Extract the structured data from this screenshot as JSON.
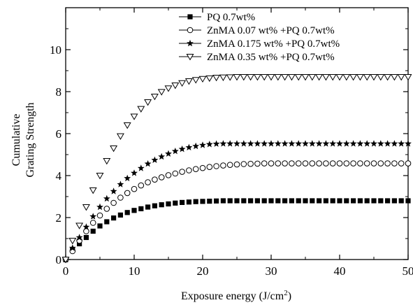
{
  "chart_data": {
    "type": "scatter",
    "title": "",
    "xlabel": "Exposure energy (J/cm",
    "xlabel_sup": "2",
    "xlabel_end": ")",
    "ylabel_line1": "Cumulative",
    "ylabel_line2": "Grating Strength",
    "xlim": [
      0,
      50
    ],
    "ylim": [
      0,
      12
    ],
    "xticks": [
      0,
      10,
      20,
      30,
      40,
      50
    ],
    "yticks": [
      0,
      2,
      4,
      6,
      8,
      10
    ],
    "grid": false,
    "legend_position": "top-center",
    "series": [
      {
        "name": "PQ 0.7wt%",
        "marker": "filled-square",
        "x": [
          0,
          1,
          2,
          3,
          4,
          5,
          6,
          7,
          8,
          9,
          10,
          11,
          12,
          13,
          14,
          15,
          16,
          17,
          18,
          19,
          20,
          21,
          22,
          23,
          24,
          25,
          26,
          27,
          28,
          29,
          30,
          31,
          32,
          33,
          34,
          35,
          36,
          37,
          38,
          39,
          40,
          41,
          42,
          43,
          44,
          45,
          46,
          47,
          48,
          49,
          50
        ],
        "y": [
          0,
          0.45,
          0.75,
          1.05,
          1.35,
          1.6,
          1.8,
          1.98,
          2.12,
          2.24,
          2.34,
          2.42,
          2.5,
          2.56,
          2.61,
          2.65,
          2.69,
          2.72,
          2.74,
          2.76,
          2.77,
          2.78,
          2.79,
          2.8,
          2.8,
          2.8,
          2.8,
          2.8,
          2.8,
          2.8,
          2.8,
          2.8,
          2.8,
          2.8,
          2.8,
          2.8,
          2.8,
          2.8,
          2.8,
          2.8,
          2.8,
          2.8,
          2.8,
          2.8,
          2.8,
          2.8,
          2.8,
          2.8,
          2.8,
          2.8,
          2.8
        ]
      },
      {
        "name": "ZnMA 0.07 wt% +PQ 0.7wt%",
        "marker": "open-circle",
        "x": [
          0,
          1,
          2,
          3,
          4,
          5,
          6,
          7,
          8,
          9,
          10,
          11,
          12,
          13,
          14,
          15,
          16,
          17,
          18,
          19,
          20,
          21,
          22,
          23,
          24,
          25,
          26,
          27,
          28,
          29,
          30,
          31,
          32,
          33,
          34,
          35,
          36,
          37,
          38,
          39,
          40,
          41,
          42,
          43,
          44,
          45,
          46,
          47,
          48,
          49,
          50
        ],
        "y": [
          0,
          0.4,
          0.9,
          1.35,
          1.75,
          2.1,
          2.42,
          2.7,
          2.95,
          3.17,
          3.36,
          3.53,
          3.68,
          3.81,
          3.92,
          4.02,
          4.1,
          4.18,
          4.25,
          4.31,
          4.36,
          4.41,
          4.45,
          4.48,
          4.51,
          4.53,
          4.55,
          4.56,
          4.57,
          4.58,
          4.58,
          4.58,
          4.58,
          4.58,
          4.58,
          4.58,
          4.58,
          4.58,
          4.58,
          4.58,
          4.58,
          4.58,
          4.58,
          4.58,
          4.58,
          4.58,
          4.58,
          4.58,
          4.58,
          4.58,
          4.58
        ]
      },
      {
        "name": "ZnMA 0.175 wt% +PQ 0.7wt%",
        "marker": "filled-star",
        "x": [
          0,
          1,
          2,
          3,
          4,
          5,
          6,
          7,
          8,
          9,
          10,
          11,
          12,
          13,
          14,
          15,
          16,
          17,
          18,
          19,
          20,
          21,
          22,
          23,
          24,
          25,
          26,
          27,
          28,
          29,
          30,
          31,
          32,
          33,
          34,
          35,
          36,
          37,
          38,
          39,
          40,
          41,
          42,
          43,
          44,
          45,
          46,
          47,
          48,
          49,
          50
        ],
        "y": [
          0,
          0.55,
          1.05,
          1.55,
          2.05,
          2.5,
          2.9,
          3.25,
          3.58,
          3.87,
          4.12,
          4.35,
          4.56,
          4.74,
          4.9,
          5.04,
          5.16,
          5.26,
          5.34,
          5.4,
          5.45,
          5.49,
          5.51,
          5.52,
          5.52,
          5.52,
          5.52,
          5.52,
          5.52,
          5.52,
          5.52,
          5.52,
          5.52,
          5.52,
          5.52,
          5.52,
          5.52,
          5.52,
          5.52,
          5.52,
          5.52,
          5.52,
          5.52,
          5.52,
          5.52,
          5.52,
          5.52,
          5.52,
          5.52,
          5.52,
          5.52
        ]
      },
      {
        "name": "ZnMA 0.35 wt% +PQ 0.7wt%",
        "marker": "open-triangle-down",
        "x": [
          0,
          1,
          2,
          3,
          4,
          5,
          6,
          7,
          8,
          9,
          10,
          11,
          12,
          13,
          14,
          15,
          16,
          17,
          18,
          19,
          20,
          21,
          22,
          23,
          24,
          25,
          26,
          27,
          28,
          29,
          30,
          31,
          32,
          33,
          34,
          35,
          36,
          37,
          38,
          39,
          40,
          41,
          42,
          43,
          44,
          45,
          46,
          47,
          48,
          49,
          50
        ],
        "y": [
          0,
          0.9,
          1.62,
          2.5,
          3.3,
          4.0,
          4.7,
          5.3,
          5.88,
          6.4,
          6.82,
          7.18,
          7.5,
          7.77,
          7.99,
          8.16,
          8.3,
          8.41,
          8.5,
          8.56,
          8.61,
          8.64,
          8.67,
          8.68,
          8.69,
          8.7,
          8.7,
          8.7,
          8.7,
          8.7,
          8.7,
          8.7,
          8.7,
          8.7,
          8.7,
          8.7,
          8.7,
          8.7,
          8.7,
          8.7,
          8.7,
          8.7,
          8.7,
          8.7,
          8.7,
          8.7,
          8.7,
          8.7,
          8.7,
          8.7,
          8.7
        ]
      }
    ]
  }
}
